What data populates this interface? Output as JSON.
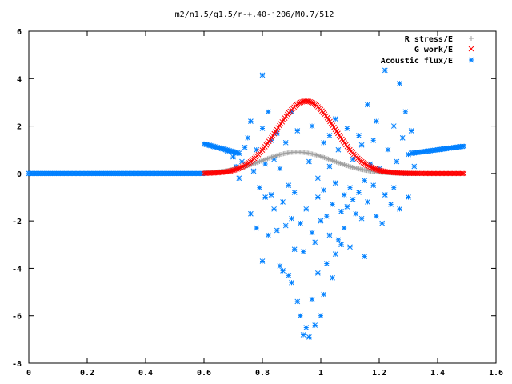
{
  "chart_data": {
    "type": "scatter",
    "title": "m2/n1.5/q1.5/r-+.40-j206/M0.7/512",
    "xlim": [
      0,
      1.6
    ],
    "ylim": [
      -8,
      6
    ],
    "xticks": [
      "0",
      "0.2",
      "0.4",
      "0.6",
      "0.8",
      "1",
      "1.2",
      "1.4",
      "1.6"
    ],
    "yticks": [
      "-8",
      "-6",
      "-4",
      "-2",
      "0",
      "2",
      "4",
      "6"
    ],
    "grid": false,
    "legend_position": "top-right",
    "colors": {
      "r_stress": "#a0a0a0",
      "g_work": "#ff0000",
      "acoustic": "#0080ff"
    },
    "series": [
      {
        "name": "R stress/E",
        "marker": "plus",
        "curve": {
          "x_range": [
            0.6,
            1.33
          ],
          "peak_x": 0.92,
          "peak_y": 0.9,
          "width": 0.12
        }
      },
      {
        "name": "G work/E",
        "marker": "cross",
        "curve": {
          "x_range": [
            0.6,
            1.49
          ],
          "peak_x": 0.95,
          "peak_y": 3.05,
          "width": 0.1
        }
      },
      {
        "name": "Acoustic flux/E",
        "marker": "star",
        "flat": {
          "x_range": [
            0.0,
            0.6
          ],
          "y": 0.0
        },
        "left_band": {
          "x_range": [
            0.6,
            0.72
          ],
          "y": [
            1.25,
            0.85
          ]
        },
        "right_band": {
          "x_range": [
            1.31,
            1.49
          ],
          "y": [
            0.85,
            1.15
          ]
        },
        "scatter": [
          [
            0.68,
            0.95
          ],
          [
            0.7,
            0.7
          ],
          [
            0.71,
            0.3
          ],
          [
            0.72,
            -0.2
          ],
          [
            0.73,
            0.5
          ],
          [
            0.74,
            1.1
          ],
          [
            0.75,
            1.5
          ],
          [
            0.76,
            2.2
          ],
          [
            0.76,
            -1.7
          ],
          [
            0.77,
            0.1
          ],
          [
            0.78,
            1.0
          ],
          [
            0.78,
            -2.3
          ],
          [
            0.79,
            -0.6
          ],
          [
            0.8,
            4.15
          ],
          [
            0.8,
            1.9
          ],
          [
            0.8,
            -3.7
          ],
          [
            0.81,
            0.4
          ],
          [
            0.81,
            -1.0
          ],
          [
            0.82,
            2.6
          ],
          [
            0.82,
            -2.6
          ],
          [
            0.83,
            1.4
          ],
          [
            0.83,
            -0.9
          ],
          [
            0.84,
            -1.5
          ],
          [
            0.84,
            0.6
          ],
          [
            0.85,
            -2.4
          ],
          [
            0.85,
            1.7
          ],
          [
            0.86,
            -3.9
          ],
          [
            0.86,
            0.2
          ],
          [
            0.87,
            -1.2
          ],
          [
            0.87,
            -4.1
          ],
          [
            0.88,
            -2.2
          ],
          [
            0.88,
            1.3
          ],
          [
            0.89,
            -4.3
          ],
          [
            0.89,
            -0.5
          ],
          [
            0.9,
            -4.6
          ],
          [
            0.9,
            2.6
          ],
          [
            0.9,
            -1.9
          ],
          [
            0.91,
            -3.2
          ],
          [
            0.91,
            -0.8
          ],
          [
            0.92,
            -5.4
          ],
          [
            0.92,
            1.8
          ],
          [
            0.93,
            -6.0
          ],
          [
            0.93,
            -2.1
          ],
          [
            0.94,
            -6.8
          ],
          [
            0.94,
            -3.3
          ],
          [
            0.95,
            -6.5
          ],
          [
            0.95,
            -1.5
          ],
          [
            0.96,
            -6.9
          ],
          [
            0.96,
            0.5
          ],
          [
            0.97,
            -5.3
          ],
          [
            0.97,
            -2.5
          ],
          [
            0.98,
            -6.4
          ],
          [
            0.98,
            -2.9
          ],
          [
            0.99,
            -4.2
          ],
          [
            0.99,
            -1.0
          ],
          [
            1.0,
            -6.0
          ],
          [
            1.0,
            -2.0
          ],
          [
            1.01,
            -5.1
          ],
          [
            1.01,
            -0.7
          ],
          [
            1.02,
            -3.8
          ],
          [
            1.02,
            -1.8
          ],
          [
            1.03,
            -2.6
          ],
          [
            1.03,
            0.3
          ],
          [
            1.04,
            -4.4
          ],
          [
            1.04,
            -1.3
          ],
          [
            1.05,
            -3.4
          ],
          [
            1.05,
            -0.4
          ],
          [
            1.06,
            -2.8
          ],
          [
            1.06,
            1.0
          ],
          [
            1.07,
            -1.6
          ],
          [
            1.07,
            -3.0
          ],
          [
            1.08,
            -0.9
          ],
          [
            1.08,
            -2.3
          ],
          [
            1.09,
            -1.4
          ],
          [
            1.1,
            -3.1
          ],
          [
            1.1,
            -0.6
          ],
          [
            1.11,
            -1.1
          ],
          [
            1.12,
            -1.7
          ],
          [
            1.13,
            -0.8
          ],
          [
            1.14,
            -1.9
          ],
          [
            1.15,
            -3.5
          ],
          [
            1.15,
            -0.3
          ],
          [
            1.16,
            -1.2
          ],
          [
            1.17,
            0.4
          ],
          [
            1.18,
            -0.5
          ],
          [
            1.19,
            -1.8
          ],
          [
            1.2,
            0.2
          ],
          [
            1.21,
            -2.1
          ],
          [
            1.22,
            4.35
          ],
          [
            1.22,
            -0.9
          ],
          [
            1.23,
            1.0
          ],
          [
            1.24,
            -1.3
          ],
          [
            1.25,
            2.0
          ],
          [
            1.25,
            -0.6
          ],
          [
            1.26,
            0.5
          ],
          [
            1.27,
            3.8
          ],
          [
            1.27,
            -1.5
          ],
          [
            1.28,
            1.5
          ],
          [
            1.29,
            0.0
          ],
          [
            1.29,
            2.6
          ],
          [
            1.3,
            -1.0
          ],
          [
            1.3,
            0.8
          ],
          [
            1.31,
            1.8
          ],
          [
            1.32,
            0.3
          ],
          [
            1.16,
            2.9
          ],
          [
            1.19,
            2.2
          ],
          [
            1.13,
            1.6
          ],
          [
            1.09,
            1.9
          ],
          [
            1.05,
            2.3
          ],
          [
            1.01,
            1.3
          ],
          [
            0.97,
            2.0
          ],
          [
            0.99,
            -0.2
          ],
          [
            1.03,
            1.6
          ],
          [
            1.11,
            0.6
          ],
          [
            1.14,
            1.2
          ],
          [
            1.18,
            1.4
          ]
        ]
      }
    ]
  }
}
